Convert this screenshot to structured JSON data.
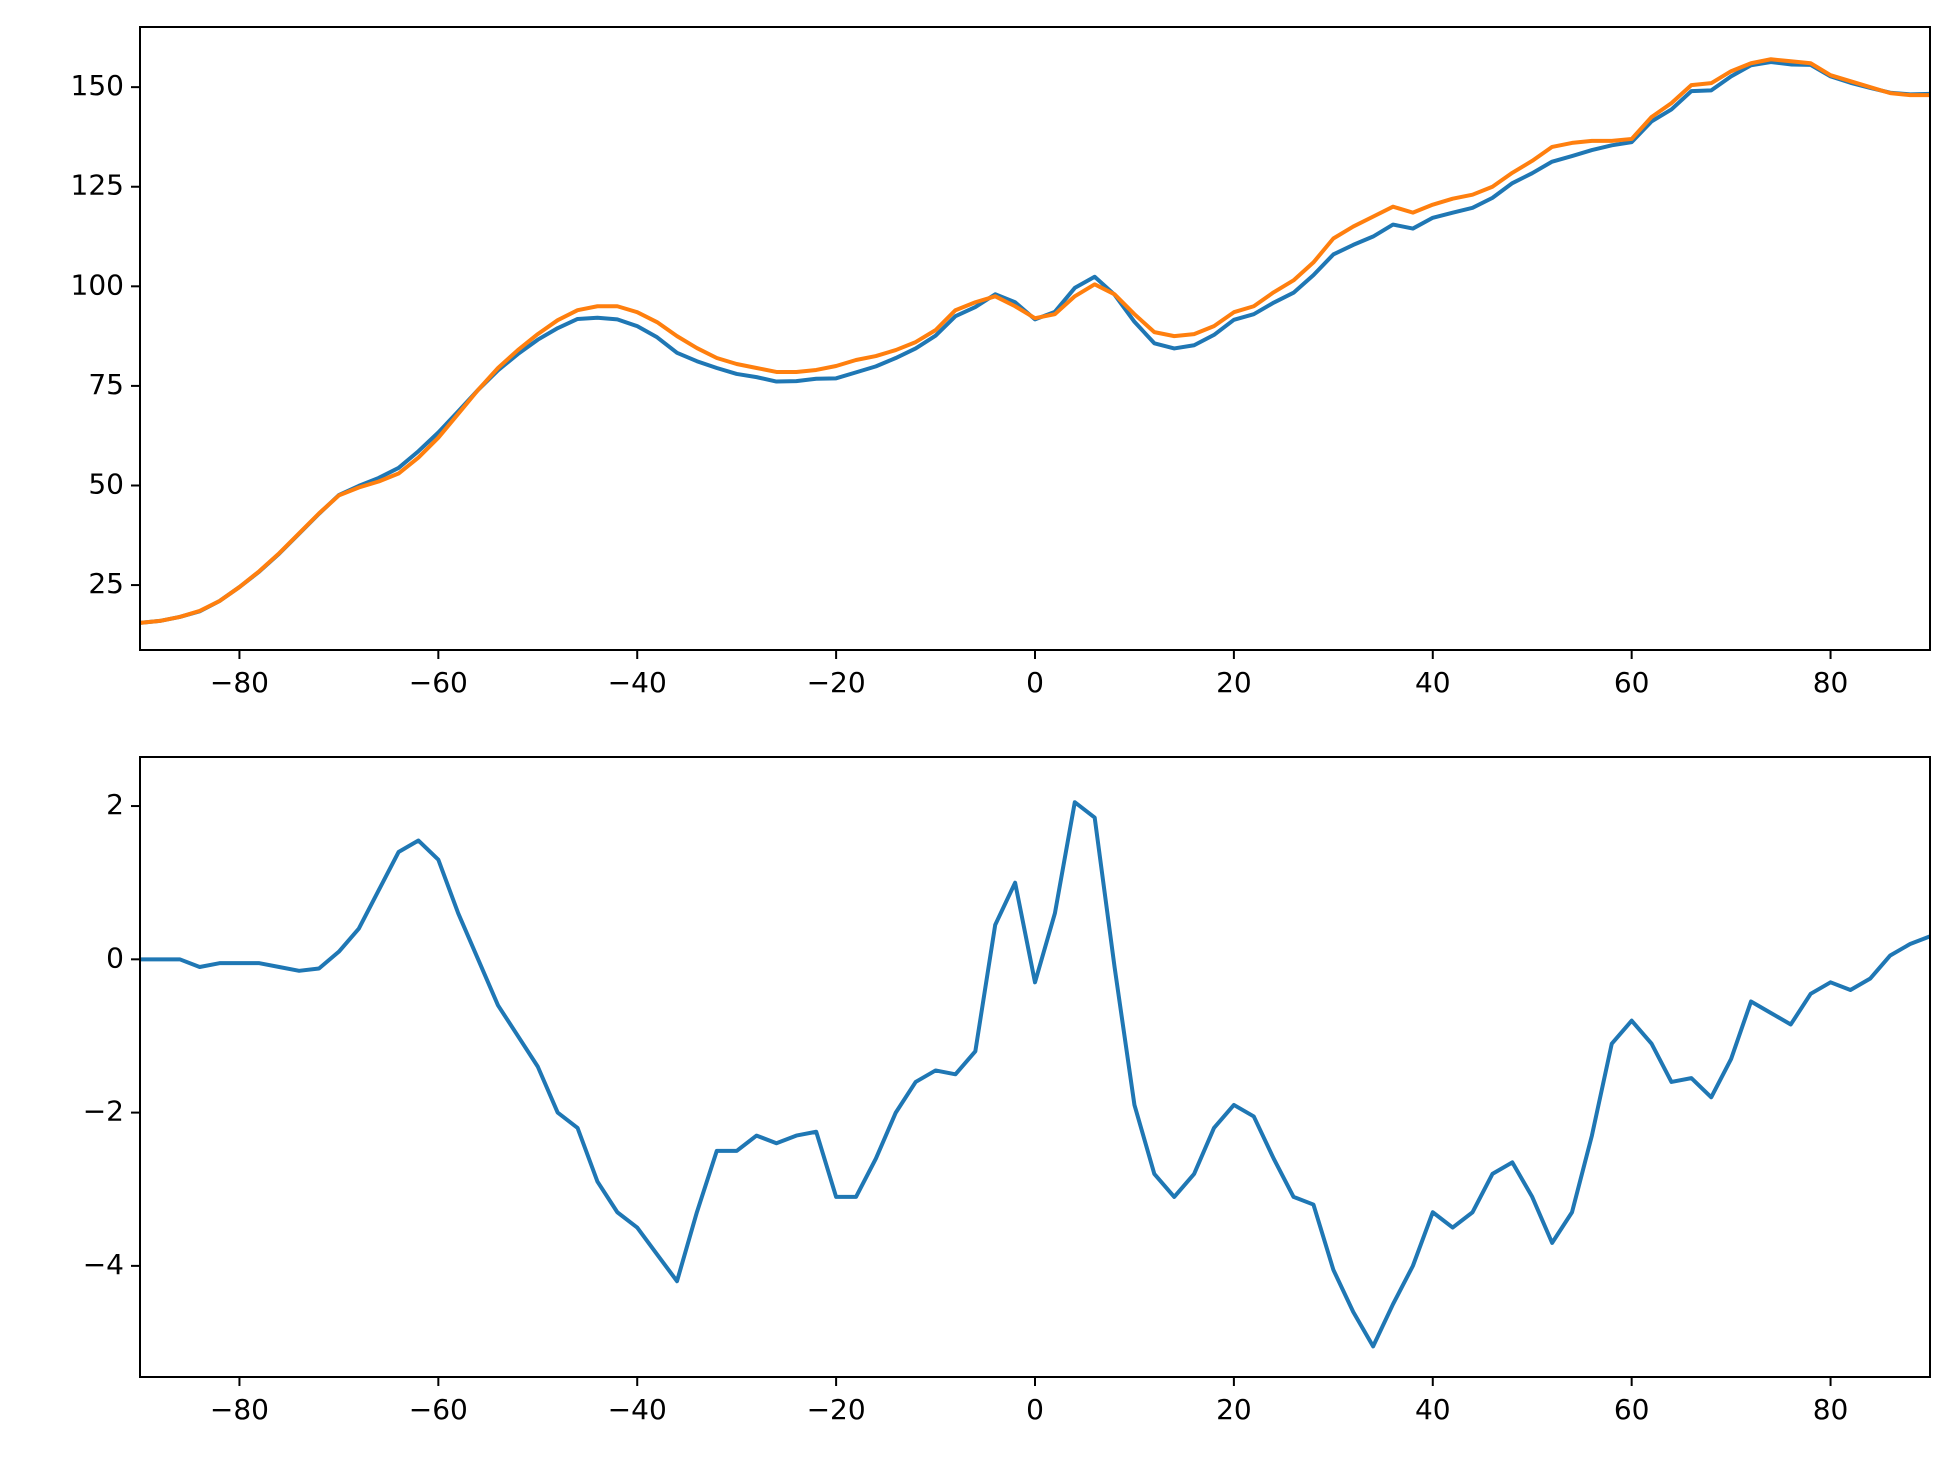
{
  "chart_data": [
    {
      "type": "line",
      "x": [
        -90,
        -88,
        -86,
        -84,
        -82,
        -80,
        -78,
        -76,
        -74,
        -72,
        -70,
        -68,
        -66,
        -64,
        -62,
        -60,
        -58,
        -56,
        -54,
        -52,
        -50,
        -48,
        -46,
        -44,
        -42,
        -40,
        -38,
        -36,
        -34,
        -32,
        -30,
        -28,
        -26,
        -24,
        -22,
        -20,
        -18,
        -16,
        -14,
        -12,
        -10,
        -8,
        -6,
        -4,
        -2,
        0,
        2,
        4,
        6,
        8,
        10,
        12,
        14,
        16,
        18,
        20,
        22,
        24,
        26,
        28,
        30,
        32,
        34,
        36,
        38,
        40,
        42,
        44,
        46,
        48,
        50,
        52,
        54,
        56,
        58,
        60,
        62,
        64,
        66,
        68,
        70,
        72,
        74,
        76,
        78,
        80,
        82,
        84,
        86,
        88,
        90
      ],
      "series": [
        {
          "color": "#1f77b4",
          "values": [
            15.5,
            16,
            17,
            18.4,
            21,
            24.5,
            28.4,
            32.9,
            37.9,
            42.9,
            47.6,
            49.9,
            51.9,
            54.4,
            58.6,
            63.3,
            68.6,
            74,
            78.9,
            83,
            86.6,
            89.5,
            91.8,
            92.1,
            91.7,
            90,
            87.2,
            83.3,
            81.2,
            79.5,
            78,
            77.2,
            76.1,
            76.2,
            76.8,
            76.9,
            78.4,
            79.9,
            82,
            84.4,
            87.6,
            92.5,
            94.8,
            98,
            96,
            91.7,
            93.6,
            99.6,
            102.4,
            97.9,
            91.1,
            85.7,
            84.4,
            85.2,
            87.8,
            91.6,
            93,
            95.9,
            98.4,
            102.8,
            108,
            110.4,
            112.5,
            115.5,
            114.5,
            117.2,
            118.5,
            119.7,
            122.2,
            125.9,
            128.4,
            131.3,
            132.7,
            134.2,
            135.4,
            136.2,
            141.4,
            144.4,
            149,
            149.2,
            152.7,
            155.5,
            156.3,
            155.7,
            155.6,
            152.7,
            151.1,
            149.8,
            148.6,
            148.2,
            148.3
          ]
        },
        {
          "color": "#ff7f0e",
          "values": [
            15.5,
            16,
            17,
            18.5,
            21,
            24.5,
            28.5,
            33,
            38,
            43,
            47.5,
            49.5,
            51,
            53,
            57,
            62,
            68,
            74,
            79.5,
            84,
            88,
            91.5,
            94,
            95,
            95,
            93.5,
            91,
            87.5,
            84.5,
            82,
            80.5,
            79.5,
            78.5,
            78.5,
            79,
            80,
            81.5,
            82.5,
            84,
            86,
            89,
            94,
            96,
            97.5,
            95,
            92,
            93,
            97.5,
            100.5,
            98,
            93,
            88.5,
            87.5,
            88,
            90,
            93.5,
            95,
            98.5,
            101.5,
            106,
            112,
            115,
            117.5,
            120,
            118.5,
            120.5,
            122,
            123,
            125,
            128.5,
            131.5,
            135,
            136,
            136.5,
            136.5,
            137,
            142.5,
            146,
            150.5,
            151,
            154,
            156,
            157,
            156.5,
            156,
            153,
            151.5,
            150,
            148.5,
            148,
            148
          ]
        }
      ],
      "xlim": [
        -90,
        90
      ],
      "xticks": [
        {
          "value": -80,
          "label": "−80"
        },
        {
          "value": -60,
          "label": "−60"
        },
        {
          "value": -40,
          "label": "−40"
        },
        {
          "value": -20,
          "label": "−20"
        },
        0,
        20,
        40,
        60,
        80
      ],
      "ylim": [
        8.7,
        165.1
      ],
      "yticks": [
        25,
        50,
        75,
        100,
        125,
        150
      ]
    },
    {
      "type": "line",
      "x": [
        -90,
        -88,
        -86,
        -84,
        -82,
        -80,
        -78,
        -76,
        -74,
        -72,
        -70,
        -68,
        -66,
        -64,
        -62,
        -60,
        -58,
        -56,
        -54,
        -52,
        -50,
        -48,
        -46,
        -44,
        -42,
        -40,
        -38,
        -36,
        -34,
        -32,
        -30,
        -28,
        -26,
        -24,
        -22,
        -20,
        -18,
        -16,
        -14,
        -12,
        -10,
        -8,
        -6,
        -4,
        -2,
        0,
        2,
        4,
        6,
        8,
        10,
        12,
        14,
        16,
        18,
        20,
        22,
        24,
        26,
        28,
        30,
        32,
        34,
        36,
        38,
        40,
        42,
        44,
        46,
        48,
        50,
        52,
        54,
        56,
        58,
        60,
        62,
        64,
        66,
        68,
        70,
        72,
        74,
        76,
        78,
        80,
        82,
        84,
        86,
        88,
        90
      ],
      "series": [
        {
          "color": "#1f77b4",
          "values": [
            0,
            0,
            0,
            -0.1,
            -0.05,
            -0.05,
            -0.05,
            -0.1,
            -0.15,
            -0.12,
            0.1,
            0.4,
            0.9,
            1.4,
            1.55,
            1.3,
            0.6,
            0,
            -0.6,
            -1,
            -1.4,
            -2,
            -2.2,
            -2.9,
            -3.3,
            -3.5,
            -3.85,
            -4.2,
            -3.3,
            -2.5,
            -2.5,
            -2.3,
            -2.4,
            -2.3,
            -2.25,
            -3.1,
            -3.1,
            -2.6,
            -2,
            -1.6,
            -1.45,
            -1.5,
            -1.2,
            0.45,
            1,
            -0.3,
            0.6,
            2.05,
            1.85,
            -0.1,
            -1.9,
            -2.8,
            -3.1,
            -2.8,
            -2.2,
            -1.9,
            -2.05,
            -2.6,
            -3.1,
            -3.2,
            -4.05,
            -4.6,
            -5.05,
            -4.5,
            -4,
            -3.3,
            -3.5,
            -3.3,
            -2.8,
            -2.65,
            -3.1,
            -3.7,
            -3.3,
            -2.3,
            -1.1,
            -0.8,
            -1.1,
            -1.6,
            -1.55,
            -1.8,
            -1.3,
            -0.55,
            -0.7,
            -0.85,
            -0.45,
            -0.3,
            -0.4,
            -0.25,
            0.05,
            0.2,
            0.3
          ]
        }
      ],
      "xlim": [
        -90,
        90
      ],
      "xticks": [
        {
          "value": -80,
          "label": "−80"
        },
        {
          "value": -60,
          "label": "−60"
        },
        {
          "value": -40,
          "label": "−40"
        },
        {
          "value": -20,
          "label": "−20"
        },
        0,
        20,
        40,
        60,
        80
      ],
      "ylim": [
        -5.45,
        2.64
      ],
      "yticks": [
        {
          "value": -4,
          "label": "−4"
        },
        {
          "value": -2,
          "label": "−2"
        },
        0,
        2
      ]
    }
  ]
}
